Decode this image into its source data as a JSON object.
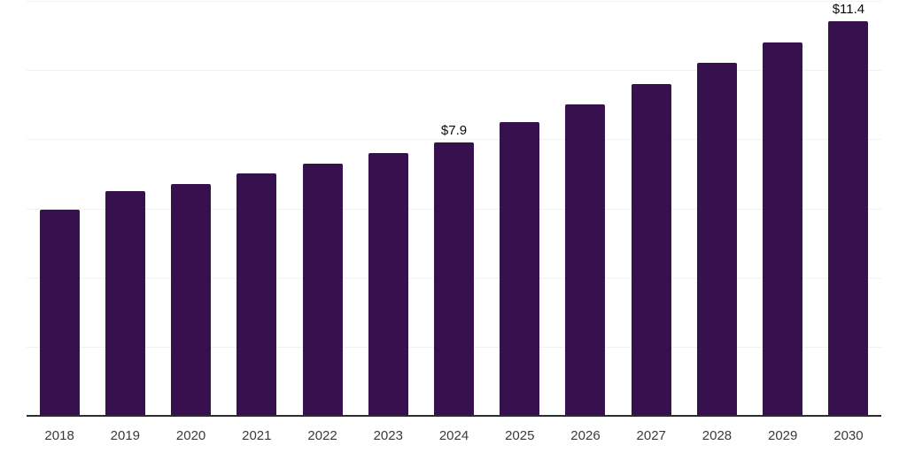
{
  "chart_data": {
    "type": "bar",
    "title": "",
    "xlabel": "",
    "ylabel": "",
    "categories": [
      "2018",
      "2019",
      "2020",
      "2021",
      "2022",
      "2023",
      "2024",
      "2025",
      "2026",
      "2027",
      "2028",
      "2029",
      "2030"
    ],
    "values": [
      5.95,
      6.5,
      6.7,
      7.0,
      7.3,
      7.6,
      7.9,
      8.5,
      9.0,
      9.6,
      10.2,
      10.8,
      11.4
    ],
    "data_labels": {
      "2024": "$7.9",
      "2030": "$11.4"
    },
    "ylim": [
      0,
      12
    ],
    "grid": "horizontal",
    "gridline_interval": 2,
    "legend": "none",
    "colors": {
      "bar": "#37114E",
      "gridline": "#f2f2f2",
      "axis_line": "#2d2d2d",
      "tick_label": "#3a3a3a",
      "data_label": "#0a0a0a",
      "background": "#ffffff"
    }
  }
}
